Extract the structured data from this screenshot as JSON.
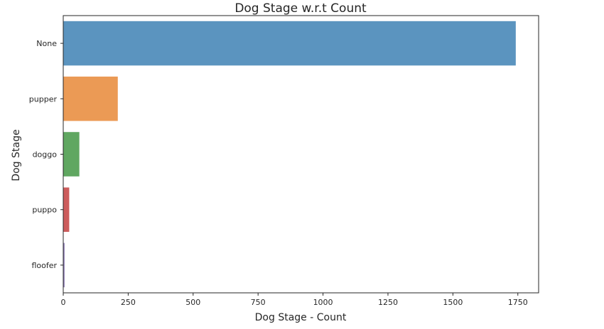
{
  "chart_data": {
    "type": "bar",
    "orientation": "horizontal",
    "title": "Dog Stage w.r.t Count",
    "xlabel": "Dog Stage - Count",
    "ylabel": "Dog Stage",
    "categories": [
      "None",
      "pupper",
      "doggo",
      "puppo",
      "floofer"
    ],
    "values": [
      1742,
      210,
      62,
      23,
      5
    ],
    "colors": [
      "#5b94bf",
      "#eb9a55",
      "#60a761",
      "#cc5c5c",
      "#8d7bb5"
    ],
    "xlim": [
      0,
      1830
    ],
    "xticks": [
      0,
      250,
      500,
      750,
      1000,
      1250,
      1500,
      1750
    ],
    "xtick_labels": [
      "0",
      "250",
      "500",
      "750",
      "1000",
      "1250",
      "1500",
      "1750"
    ],
    "grid": false,
    "legend": "none"
  }
}
